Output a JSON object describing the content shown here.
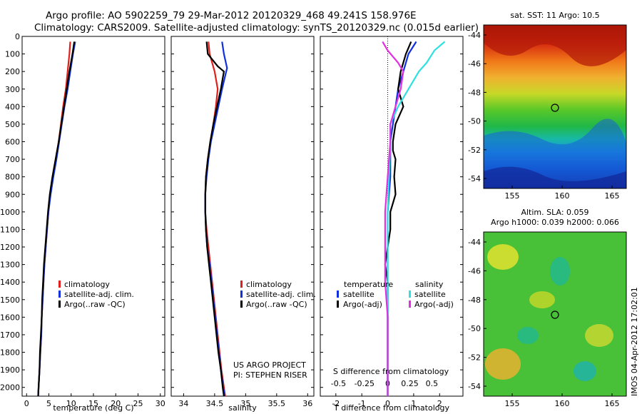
{
  "header": {
    "title_line1": "Argo profile: AO 5902259_79 29-Mar-2012 20120329_468 49.241S 158.976E",
    "title_line2": "Climatology: CARS2009. Satellite-adjusted climatology: synTS_20120329.nc (0.015d earlier)"
  },
  "colors": {
    "climatology": "#e0201a",
    "satellite": "#1030e0",
    "argo": "#000000",
    "salinity_satellite": "#30e0e0",
    "salinity_argo": "#e030e0"
  },
  "depth_ticks": [
    0,
    100,
    200,
    300,
    400,
    500,
    600,
    700,
    800,
    900,
    1000,
    1100,
    1200,
    1300,
    1400,
    1500,
    1600,
    1700,
    1800,
    1900,
    2000
  ],
  "chart_data": [
    {
      "id": "temperature",
      "type": "line",
      "xlabel": "temperature (deg C)",
      "xlim": [
        -1,
        31
      ],
      "xticks": [
        0,
        5,
        10,
        15,
        20,
        25,
        30
      ],
      "ylim": [
        0,
        2050
      ],
      "legend": [
        "climatology",
        "satellite-adj. clim.",
        "Argo(..raw -QC)"
      ],
      "series": [
        {
          "name": "climatology",
          "color": "#e0201a",
          "points": [
            [
              9.8,
              30
            ],
            [
              9.6,
              100
            ],
            [
              9.2,
              200
            ],
            [
              8.8,
              300
            ],
            [
              8.2,
              400
            ],
            [
              7.7,
              500
            ],
            [
              7.2,
              600
            ],
            [
              6.6,
              700
            ],
            [
              5.9,
              800
            ],
            [
              5.3,
              900
            ],
            [
              4.9,
              1000
            ],
            [
              4.6,
              1100
            ],
            [
              4.3,
              1200
            ],
            [
              4.0,
              1300
            ],
            [
              3.8,
              1400
            ],
            [
              3.6,
              1500
            ],
            [
              3.4,
              1600
            ],
            [
              3.3,
              1700
            ],
            [
              3.1,
              1800
            ],
            [
              2.9,
              1900
            ],
            [
              2.7,
              2000
            ],
            [
              2.6,
              2050
            ]
          ]
        },
        {
          "name": "satellite-adj. clim.",
          "color": "#1030e0",
          "points": [
            [
              10.9,
              30
            ],
            [
              10.4,
              100
            ],
            [
              9.8,
              200
            ],
            [
              9.2,
              300
            ],
            [
              8.5,
              400
            ],
            [
              7.9,
              500
            ],
            [
              7.3,
              600
            ],
            [
              6.7,
              700
            ],
            [
              6.0,
              800
            ],
            [
              5.4,
              900
            ],
            [
              4.9,
              1000
            ],
            [
              4.6,
              1100
            ],
            [
              4.3,
              1200
            ],
            [
              4.0,
              1300
            ],
            [
              3.8,
              1400
            ],
            [
              3.6,
              1500
            ],
            [
              3.4,
              1600
            ],
            [
              3.3,
              1700
            ],
            [
              3.1,
              1800
            ],
            [
              2.9,
              1900
            ],
            [
              2.7,
              2000
            ],
            [
              2.6,
              2050
            ]
          ]
        },
        {
          "name": "Argo(..raw -QC)",
          "color": "#000000",
          "points": [
            [
              10.7,
              30
            ],
            [
              10.3,
              100
            ],
            [
              9.6,
              200
            ],
            [
              9.0,
              300
            ],
            [
              8.4,
              400
            ],
            [
              7.8,
              500
            ],
            [
              7.2,
              600
            ],
            [
              6.5,
              700
            ],
            [
              5.8,
              800
            ],
            [
              5.2,
              900
            ],
            [
              4.8,
              1000
            ],
            [
              4.5,
              1100
            ],
            [
              4.2,
              1200
            ],
            [
              3.9,
              1300
            ],
            [
              3.7,
              1400
            ],
            [
              3.5,
              1500
            ],
            [
              3.4,
              1600
            ],
            [
              3.2,
              1700
            ],
            [
              3.0,
              1800
            ],
            [
              2.9,
              1900
            ],
            [
              2.7,
              2000
            ],
            [
              2.6,
              2050
            ]
          ]
        }
      ]
    },
    {
      "id": "salinity",
      "type": "line",
      "xlabel": "salinity",
      "xlim": [
        33.8,
        36.1
      ],
      "xticks": [
        34,
        34.5,
        35,
        35.5,
        36
      ],
      "ylim": [
        0,
        2050
      ],
      "legend": [
        "climatology",
        "satellite-adj. clim.",
        "Argo(..raw -QC)"
      ],
      "annotation": [
        "US ARGO PROJECT",
        "PI: STEPHEN RISER"
      ],
      "series": [
        {
          "name": "climatology",
          "color": "#e0201a",
          "points": [
            [
              34.4,
              30
            ],
            [
              34.42,
              100
            ],
            [
              34.5,
              200
            ],
            [
              34.55,
              300
            ],
            [
              34.52,
              400
            ],
            [
              34.48,
              500
            ],
            [
              34.43,
              600
            ],
            [
              34.39,
              700
            ],
            [
              34.36,
              800
            ],
            [
              34.35,
              900
            ],
            [
              34.35,
              1000
            ],
            [
              34.37,
              1100
            ],
            [
              34.4,
              1200
            ],
            [
              34.43,
              1300
            ],
            [
              34.46,
              1400
            ],
            [
              34.49,
              1500
            ],
            [
              34.52,
              1600
            ],
            [
              34.55,
              1700
            ],
            [
              34.58,
              1800
            ],
            [
              34.61,
              1900
            ],
            [
              34.65,
              2000
            ],
            [
              34.67,
              2050
            ]
          ]
        },
        {
          "name": "satellite-adj. clim.",
          "color": "#1030e0",
          "points": [
            [
              34.62,
              30
            ],
            [
              34.65,
              100
            ],
            [
              34.7,
              180
            ],
            [
              34.62,
              300
            ],
            [
              34.56,
              400
            ],
            [
              34.5,
              500
            ],
            [
              34.44,
              600
            ],
            [
              34.4,
              700
            ],
            [
              34.37,
              800
            ],
            [
              34.35,
              900
            ],
            [
              34.35,
              1000
            ],
            [
              34.36,
              1100
            ],
            [
              34.38,
              1200
            ],
            [
              34.42,
              1300
            ],
            [
              34.45,
              1400
            ],
            [
              34.48,
              1500
            ],
            [
              34.51,
              1600
            ],
            [
              34.54,
              1700
            ],
            [
              34.57,
              1800
            ],
            [
              34.6,
              1900
            ],
            [
              34.64,
              2000
            ],
            [
              34.66,
              2050
            ]
          ]
        },
        {
          "name": "Argo(..raw -QC)",
          "color": "#000000",
          "points": [
            [
              34.37,
              30
            ],
            [
              34.39,
              100
            ],
            [
              34.55,
              170
            ],
            [
              34.65,
              200
            ],
            [
              34.6,
              300
            ],
            [
              34.54,
              400
            ],
            [
              34.48,
              500
            ],
            [
              34.43,
              600
            ],
            [
              34.39,
              700
            ],
            [
              34.36,
              800
            ],
            [
              34.35,
              900
            ],
            [
              34.35,
              1000
            ],
            [
              34.36,
              1100
            ],
            [
              34.38,
              1200
            ],
            [
              34.41,
              1300
            ],
            [
              34.44,
              1400
            ],
            [
              34.47,
              1500
            ],
            [
              34.5,
              1600
            ],
            [
              34.53,
              1700
            ],
            [
              34.56,
              1800
            ],
            [
              34.6,
              1900
            ],
            [
              34.63,
              2000
            ],
            [
              34.65,
              2050
            ]
          ]
        }
      ]
    },
    {
      "id": "difference",
      "type": "line",
      "xlabel": "T difference from climatology",
      "xlabel2": "S difference from climatology",
      "xlim": [
        -2.6,
        2.9
      ],
      "xticks": [
        -2,
        -1,
        0,
        1,
        2
      ],
      "xticks_s": [
        {
          "label": "-0.5",
          "at": -1.9
        },
        {
          "label": "-0.25",
          "at": -0.9
        },
        {
          "label": "0",
          "at": 0
        },
        {
          "label": "0.25",
          "at": 0.85
        },
        {
          "label": "0.5",
          "at": 1.7
        }
      ],
      "ylim": [
        0,
        2050
      ],
      "legend_temperature": {
        "title": "temperature",
        "items": [
          "satellite",
          "Argo(-adj)"
        ]
      },
      "legend_salinity": {
        "title": "salinity",
        "items": [
          "satellite",
          "Argo(-adj)"
        ]
      },
      "series": [
        {
          "name": "satellite",
          "color": "#1030e0",
          "points": [
            [
              1.1,
              30
            ],
            [
              0.8,
              100
            ],
            [
              0.6,
              200
            ],
            [
              0.4,
              300
            ],
            [
              0.3,
              400
            ],
            [
              0.2,
              500
            ],
            [
              0.1,
              600
            ],
            [
              0.1,
              800
            ],
            [
              0,
              1000
            ],
            [
              0,
              1200
            ],
            [
              0,
              1400
            ],
            [
              0,
              1600
            ],
            [
              0,
              1800
            ],
            [
              0,
              2050
            ]
          ]
        },
        {
          "name": "Argo(-adj)",
          "color": "#000000",
          "points": [
            [
              0.9,
              30
            ],
            [
              0.7,
              100
            ],
            [
              0.5,
              200
            ],
            [
              0.4,
              300
            ],
            [
              0.6,
              400
            ],
            [
              0.3,
              500
            ],
            [
              0.2,
              600
            ],
            [
              0.2,
              650
            ],
            [
              0.3,
              700
            ],
            [
              0.25,
              800
            ],
            [
              0.3,
              900
            ],
            [
              0.1,
              1000
            ],
            [
              0.1,
              1100
            ],
            [
              0,
              1200
            ],
            [
              -0.1,
              1300
            ],
            [
              0,
              1400
            ],
            [
              0,
              1600
            ],
            [
              0,
              1800
            ],
            [
              0,
              2050
            ]
          ]
        },
        {
          "name": "satellite",
          "color": "#30e0e0",
          "points": [
            [
              2.2,
              30
            ],
            [
              1.8,
              80
            ],
            [
              1.5,
              150
            ],
            [
              1.2,
              200
            ],
            [
              0.8,
              300
            ],
            [
              0.4,
              400
            ],
            [
              0.1,
              500
            ],
            [
              0.1,
              600
            ],
            [
              0.05,
              800
            ],
            [
              0,
              1000
            ],
            [
              0,
              1200
            ],
            [
              0,
              1400
            ],
            [
              0,
              1600
            ],
            [
              0,
              1800
            ],
            [
              0,
              2050
            ]
          ]
        },
        {
          "name": "Argo(-adj)",
          "color": "#e030e0",
          "points": [
            [
              -0.2,
              30
            ],
            [
              0.0,
              80
            ],
            [
              0.4,
              150
            ],
            [
              0.6,
              200
            ],
            [
              0.5,
              300
            ],
            [
              0.3,
              400
            ],
            [
              0.1,
              500
            ],
            [
              0.1,
              600
            ],
            [
              0.0,
              800
            ],
            [
              -0.1,
              1000
            ],
            [
              -0.1,
              1200
            ],
            [
              -0.1,
              1400
            ],
            [
              0,
              1600
            ],
            [
              0,
              1800
            ],
            [
              0,
              2050
            ]
          ]
        }
      ]
    }
  ],
  "maps": {
    "sst": {
      "title": "sat. SST: 11 Argo: 10.5",
      "yticks": [
        "-44",
        "-46",
        "-48",
        "-50",
        "-52",
        "-54"
      ],
      "xticks": [
        "155",
        "160",
        "165"
      ]
    },
    "sla": {
      "title_line1": "Altim. SLA: 0.059",
      "title_line2": "Argo h1000: 0.039 h2000: 0.066",
      "yticks": [
        "-44",
        "-46",
        "-48",
        "-50",
        "-52",
        "-54"
      ],
      "xticks": [
        "155",
        "160",
        "165"
      ],
      "side_label": "IMOS 04-Apr-2012 17:02:01"
    }
  }
}
